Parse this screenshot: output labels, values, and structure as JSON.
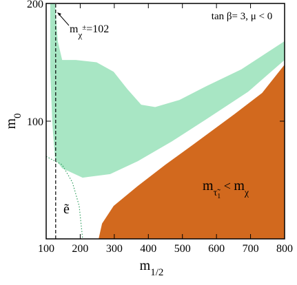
{
  "chart_data": {
    "type": "region",
    "xlim": [
      100,
      800
    ],
    "ylim": [
      0,
      200
    ],
    "xticks": [
      100,
      200,
      300,
      400,
      500,
      600,
      700,
      800
    ],
    "yticks": [
      100,
      200
    ],
    "x_label": {
      "main": "m",
      "sub": "1/2"
    },
    "y_label": {
      "main": "m",
      "sub": "0"
    },
    "annotations": {
      "params": "tan  β= 3,  μ < 0",
      "stau": {
        "m1": "m",
        "sub1": "τ̃",
        "subsub": "1",
        "rel": " < ",
        "m2": "m",
        "sub2": "χ"
      },
      "chargino": {
        "m": "m",
        "sub": "χ",
        "sup": "±",
        "rest": "=102"
      },
      "selectron": "ẽ"
    },
    "series": [
      {
        "kind": "fill",
        "color": "#a8e6c4",
        "x": [
          112,
          126,
          134,
          147,
          187,
          248,
          298,
          339,
          379,
          420,
          491,
          572,
          673,
          800,
          800,
          693,
          572,
          470,
          369,
          288,
          207,
          147,
          126,
          118,
          112
        ],
        "values": [
          200,
          200,
          168,
          152,
          152,
          150,
          142,
          127,
          114,
          112,
          118,
          130,
          144,
          168,
          152,
          125,
          102,
          83,
          66,
          55,
          52,
          60,
          68,
          98,
          144
        ]
      },
      {
        "kind": "fill",
        "color": "#d2691e",
        "x": [
          254,
          264,
          298,
          369,
          450,
          531,
          653,
          734,
          800,
          800
        ],
        "values": [
          0,
          13,
          28,
          45,
          63,
          80,
          106,
          124,
          148,
          0
        ]
      },
      {
        "kind": "dotted",
        "color": "#2e9e5e",
        "x": [
          100,
          147,
          177,
          197,
          207
        ],
        "values": [
          70,
          63,
          48,
          28,
          0
        ]
      },
      {
        "kind": "dashed",
        "color": "#000000",
        "x": [
          128,
          128
        ],
        "values": [
          0,
          200
        ]
      }
    ]
  }
}
